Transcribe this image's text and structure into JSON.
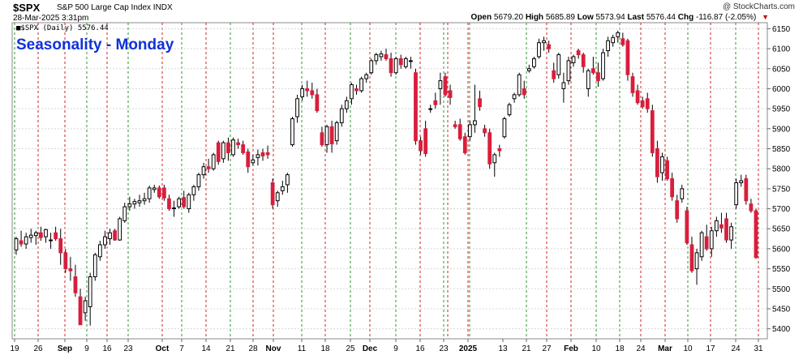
{
  "header": {
    "ticker": "$SPX",
    "description": "S&P 500 Large Cap Index",
    "exchange": "INDX",
    "date": "28-Mar-2025 3:31pm",
    "credit": "@ StockCharts.com",
    "open_label": "Open",
    "open": "5679.20",
    "high_label": "High",
    "high": "5685.89",
    "low_label": "Low",
    "low": "5573.94",
    "last_label": "Last",
    "last": "5576.44",
    "chg_label": "Chg",
    "chg": "-116.87 (-2.05%)"
  },
  "legend": "■$SPX (Daily) 5576.44",
  "chart_data": {
    "type": "candlestick",
    "title": "Seasonality - Monday",
    "up_color": "#ffffff",
    "down_color": "#d81e3c",
    "ylim": [
      5375,
      6165
    ],
    "yticks": [
      5400,
      5450,
      5500,
      5550,
      5600,
      5650,
      5700,
      5750,
      5800,
      5850,
      5900,
      5950,
      6000,
      6050,
      6100,
      6150
    ],
    "x_labels": [
      "19",
      "26",
      "Sep",
      "9",
      "16",
      "23",
      "Oct",
      "7",
      "14",
      "21",
      "28",
      "Nov",
      "11",
      "18",
      "25",
      "Dec",
      "9",
      "16",
      "23",
      "2025",
      "13",
      "21",
      "27",
      "Feb",
      "10",
      "18",
      "24",
      "Mar",
      "10",
      "17",
      "24",
      "31"
    ],
    "monday_lines_red": [
      "26",
      "Sep",
      "16",
      "Oct",
      "14",
      "28",
      "Nov",
      "18",
      "Dec",
      "16",
      "Jan 6",
      "13",
      "27",
      "Feb",
      "24",
      "Mar",
      "17",
      "31"
    ],
    "monday_lines_green": [
      "19",
      "9",
      "23",
      "7",
      "21",
      "11",
      "25",
      "9",
      "23",
      "2025",
      "21",
      "10",
      "18",
      "10",
      "24"
    ],
    "ohlc": [
      [
        5597,
        5630,
        5585,
        5625
      ],
      [
        5620,
        5645,
        5605,
        5612
      ],
      [
        5612,
        5640,
        5600,
        5630
      ],
      [
        5628,
        5650,
        5615,
        5634
      ],
      [
        5633,
        5645,
        5610,
        5640
      ],
      [
        5640,
        5655,
        5620,
        5628
      ],
      [
        5630,
        5650,
        5615,
        5648
      ],
      [
        5620,
        5640,
        5600,
        5622
      ],
      [
        5640,
        5655,
        5620,
        5625
      ],
      [
        5625,
        5650,
        5560,
        5590
      ],
      [
        5590,
        5600,
        5540,
        5550
      ],
      [
        5550,
        5580,
        5520,
        5545
      ],
      [
        5530,
        5560,
        5480,
        5490
      ],
      [
        5480,
        5500,
        5410,
        5410
      ],
      [
        5440,
        5480,
        5420,
        5470
      ],
      [
        5455,
        5540,
        5408,
        5530
      ],
      [
        5530,
        5590,
        5520,
        5585
      ],
      [
        5580,
        5620,
        5570,
        5610
      ],
      [
        5610,
        5645,
        5600,
        5630
      ],
      [
        5625,
        5650,
        5610,
        5640
      ],
      [
        5645,
        5650,
        5620,
        5622
      ],
      [
        5622,
        5680,
        5620,
        5675
      ],
      [
        5670,
        5715,
        5665,
        5705
      ],
      [
        5705,
        5730,
        5695,
        5712
      ],
      [
        5712,
        5725,
        5700,
        5718
      ],
      [
        5715,
        5735,
        5705,
        5720
      ],
      [
        5720,
        5740,
        5710,
        5725
      ],
      [
        5725,
        5758,
        5715,
        5752
      ],
      [
        5748,
        5760,
        5740,
        5752
      ],
      [
        5752,
        5758,
        5725,
        5730
      ],
      [
        5752,
        5760,
        5720,
        5727
      ],
      [
        5725,
        5735,
        5695,
        5700
      ],
      [
        5700,
        5720,
        5680,
        5702
      ],
      [
        5705,
        5730,
        5700,
        5725
      ],
      [
        5728,
        5745,
        5700,
        5705
      ],
      [
        5700,
        5740,
        5690,
        5735
      ],
      [
        5735,
        5760,
        5720,
        5755
      ],
      [
        5755,
        5790,
        5745,
        5785
      ],
      [
        5785,
        5815,
        5775,
        5805
      ],
      [
        5805,
        5825,
        5790,
        5800
      ],
      [
        5800,
        5840,
        5795,
        5835
      ],
      [
        5865,
        5870,
        5810,
        5818
      ],
      [
        5825,
        5870,
        5815,
        5865
      ],
      [
        5865,
        5878,
        5820,
        5840
      ],
      [
        5835,
        5878,
        5830,
        5872
      ],
      [
        5865,
        5875,
        5850,
        5860
      ],
      [
        5860,
        5870,
        5835,
        5840
      ],
      [
        5842,
        5850,
        5790,
        5805
      ],
      [
        5815,
        5835,
        5808,
        5822
      ],
      [
        5828,
        5848,
        5808,
        5835
      ],
      [
        5840,
        5850,
        5820,
        5832
      ],
      [
        5840,
        5858,
        5825,
        5835
      ],
      [
        5765,
        5775,
        5700,
        5710
      ],
      [
        5720,
        5745,
        5705,
        5740
      ],
      [
        5745,
        5770,
        5735,
        5755
      ],
      [
        5760,
        5790,
        5740,
        5785
      ],
      [
        5860,
        5930,
        5855,
        5925
      ],
      [
        5930,
        5985,
        5915,
        5975
      ],
      [
        5980,
        6010,
        5970,
        6000
      ],
      [
        6000,
        6020,
        5980,
        5995
      ],
      [
        5995,
        6015,
        5975,
        5985
      ],
      [
        5985,
        6000,
        5940,
        5945
      ],
      [
        5890,
        5905,
        5855,
        5860
      ],
      [
        5860,
        5910,
        5840,
        5905
      ],
      [
        5905,
        5920,
        5840,
        5862
      ],
      [
        5870,
        5920,
        5860,
        5915
      ],
      [
        5915,
        5960,
        5905,
        5950
      ],
      [
        5950,
        5980,
        5940,
        5970
      ],
      [
        5975,
        6015,
        5960,
        6010
      ],
      [
        6000,
        6010,
        5985,
        5995
      ],
      [
        5995,
        6030,
        5990,
        6025
      ],
      [
        6025,
        6040,
        6015,
        6035
      ],
      [
        6040,
        6075,
        6035,
        6070
      ],
      [
        6070,
        6090,
        6060,
        6085
      ],
      [
        6080,
        6095,
        6070,
        6087
      ],
      [
        6085,
        6100,
        6070,
        6075
      ],
      [
        6075,
        6090,
        6030,
        6040
      ],
      [
        6040,
        6080,
        6035,
        6075
      ],
      [
        6075,
        6085,
        6050,
        6060
      ],
      [
        6055,
        6080,
        6050,
        6075
      ],
      [
        6070,
        6080,
        6050,
        6070
      ],
      [
        6040,
        6050,
        5860,
        5870
      ],
      [
        5870,
        5880,
        5835,
        5845
      ],
      [
        5900,
        5920,
        5830,
        5838
      ],
      [
        5950,
        5960,
        5940,
        5950
      ],
      [
        5970,
        5990,
        5950,
        5960
      ],
      [
        6000,
        6040,
        5960,
        6020
      ],
      [
        6030,
        6040,
        5980,
        5985
      ],
      [
        5995,
        6010,
        5960,
        5978
      ],
      [
        5910,
        5920,
        5900,
        5905
      ],
      [
        5910,
        5925,
        5870,
        5875
      ],
      [
        5880,
        5890,
        5835,
        5840
      ],
      [
        5880,
        5920,
        5870,
        5910
      ],
      [
        5910,
        6010,
        5890,
        5920
      ],
      [
        5975,
        5995,
        5945,
        5955
      ],
      [
        5900,
        5910,
        5880,
        5890
      ],
      [
        5890,
        5900,
        5800,
        5812
      ],
      [
        5815,
        5840,
        5780,
        5835
      ],
      [
        5850,
        5860,
        5830,
        5845
      ],
      [
        5880,
        5930,
        5875,
        5925
      ],
      [
        5935,
        5965,
        5930,
        5960
      ],
      [
        5975,
        5990,
        5965,
        5985
      ],
      [
        5985,
        6040,
        5980,
        6035
      ],
      [
        6000,
        6020,
        5975,
        5985
      ],
      [
        6045,
        6060,
        6040,
        6050
      ],
      [
        6055,
        6080,
        6050,
        6075
      ],
      [
        6080,
        6125,
        6075,
        6115
      ],
      [
        6115,
        6130,
        6095,
        6120
      ],
      [
        6110,
        6120,
        6090,
        6100
      ],
      [
        6045,
        6065,
        6015,
        6025
      ],
      [
        6035,
        6090,
        6025,
        6085
      ],
      [
        6000,
        6040,
        5965,
        6015
      ],
      [
        6020,
        6080,
        6010,
        6070
      ],
      [
        6065,
        6085,
        6055,
        6080
      ],
      [
        6095,
        6100,
        6075,
        6085
      ],
      [
        6085,
        6090,
        6040,
        6055
      ],
      [
        6000,
        6050,
        5980,
        6045
      ],
      [
        6050,
        6080,
        6035,
        6040
      ],
      [
        6040,
        6065,
        6005,
        6020
      ],
      [
        6025,
        6100,
        6020,
        6090
      ],
      [
        6095,
        6130,
        6080,
        6120
      ],
      [
        6115,
        6135,
        6105,
        6128
      ],
      [
        6130,
        6145,
        6115,
        6140
      ],
      [
        6125,
        6140,
        6105,
        6110
      ],
      [
        6120,
        6125,
        6020,
        6035
      ],
      [
        6030,
        6040,
        5980,
        5990
      ],
      [
        5995,
        6010,
        5960,
        5965
      ],
      [
        5970,
        5980,
        5950,
        5955
      ],
      [
        5975,
        5990,
        5940,
        5950
      ],
      [
        5945,
        5960,
        5830,
        5840
      ],
      [
        5850,
        5870,
        5765,
        5780
      ],
      [
        5790,
        5840,
        5770,
        5830
      ],
      [
        5820,
        5830,
        5770,
        5775
      ],
      [
        5775,
        5790,
        5720,
        5730
      ],
      [
        5720,
        5735,
        5665,
        5675
      ],
      [
        5725,
        5760,
        5715,
        5750
      ],
      [
        5695,
        5705,
        5610,
        5615
      ],
      [
        5610,
        5630,
        5540,
        5545
      ],
      [
        5550,
        5600,
        5510,
        5590
      ],
      [
        5580,
        5645,
        5570,
        5640
      ],
      [
        5630,
        5660,
        5595,
        5600
      ],
      [
        5600,
        5655,
        5580,
        5645
      ],
      [
        5645,
        5680,
        5630,
        5670
      ],
      [
        5660,
        5690,
        5640,
        5652
      ],
      [
        5675,
        5690,
        5615,
        5622
      ],
      [
        5622,
        5665,
        5600,
        5655
      ],
      [
        5710,
        5775,
        5700,
        5765
      ],
      [
        5765,
        5785,
        5755,
        5770
      ],
      [
        5775,
        5785,
        5710,
        5720
      ],
      [
        5712,
        5725,
        5690,
        5695
      ],
      [
        5695,
        5700,
        5575,
        5578
      ]
    ]
  }
}
